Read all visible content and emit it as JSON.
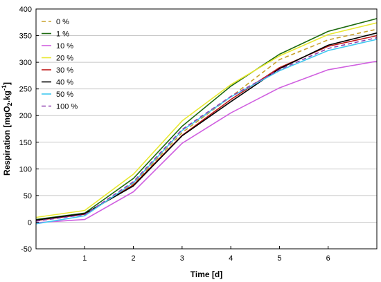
{
  "chart_data": {
    "type": "line",
    "title": "",
    "xlabel": "Time [d]",
    "ylabel": "Respiration [mgO₂.kg⁻¹]",
    "ylabel_parts": [
      "Respiration [mgO",
      "2",
      ".kg",
      "-1",
      "]"
    ],
    "x": [
      0,
      1,
      2,
      3,
      4,
      5,
      6,
      7
    ],
    "xticks": [
      1,
      2,
      3,
      4,
      5,
      6
    ],
    "xtick_labels": [
      "1",
      "2",
      "3",
      "4",
      "5",
      "6"
    ],
    "yticks": [
      -50,
      0,
      50,
      100,
      150,
      200,
      250,
      300,
      350,
      400
    ],
    "ytick_labels": [
      "-50",
      "0",
      "50",
      "100",
      "150",
      "200",
      "250",
      "300",
      "350",
      "400"
    ],
    "xlim": [
      0,
      7
    ],
    "ylim": [
      -50,
      400
    ],
    "grid": "horizontal",
    "legend_position": "top-left",
    "series": [
      {
        "name": "0 %",
        "color": "#c8a02a",
        "dash": "dashed",
        "values": [
          3,
          15,
          72,
          168,
          235,
          305,
          342,
          362
        ]
      },
      {
        "name": "1 %",
        "color": "#1e6b10",
        "dash": "solid",
        "values": [
          5,
          17,
          82,
          180,
          255,
          315,
          358,
          382
        ]
      },
      {
        "name": "10 %",
        "color": "#d060e0",
        "dash": "solid",
        "values": [
          -1,
          5,
          57,
          148,
          205,
          252,
          286,
          302
        ]
      },
      {
        "name": "20 %",
        "color": "#e8e830",
        "dash": "solid",
        "values": [
          9,
          22,
          90,
          190,
          258,
          312,
          352,
          374
        ]
      },
      {
        "name": "30 %",
        "color": "#c01818",
        "dash": "solid",
        "values": [
          3,
          15,
          70,
          163,
          230,
          290,
          330,
          350
        ]
      },
      {
        "name": "40 %",
        "color": "#000000",
        "dash": "solid",
        "values": [
          4,
          16,
          68,
          162,
          226,
          288,
          332,
          355
        ]
      },
      {
        "name": "50 %",
        "color": "#40c8f0",
        "dash": "solid",
        "values": [
          -3,
          12,
          74,
          172,
          235,
          284,
          322,
          343
        ]
      },
      {
        "name": "100 %",
        "color": "#9040b0",
        "dash": "dashed",
        "values": [
          2,
          14,
          76,
          174,
          236,
          286,
          326,
          346
        ]
      }
    ]
  }
}
